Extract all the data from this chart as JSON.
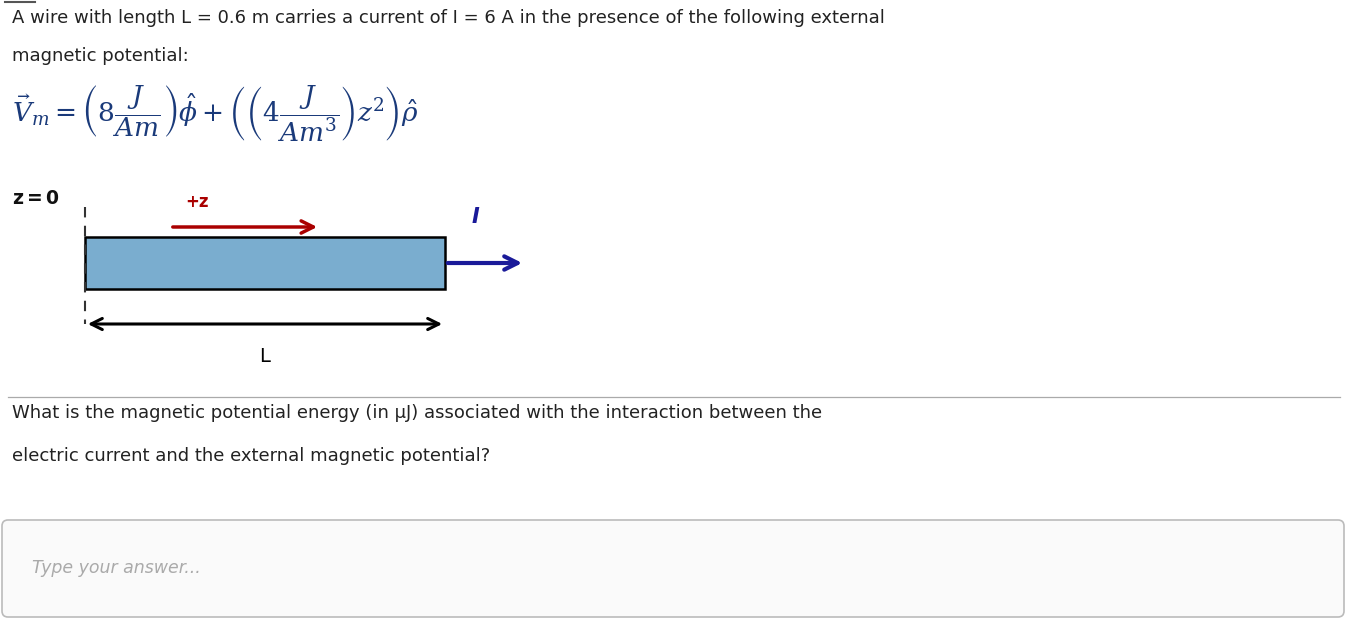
{
  "bg_color": "#ffffff",
  "text_line1": "A wire with length L = 0.6 m carries a current of I = 6 A in the presence of the following external",
  "text_line2": "magnetic potential:",
  "formula": "$\\vec{V}_m = \\left(8\\dfrac{J}{Am}\\right)\\hat{\\phi} + \\left(\\left(4\\dfrac{J}{Am^3}\\right)z^2\\right)\\hat{\\rho}$",
  "z_eq_0": "$\\mathbf{z = 0}$",
  "plus_z_label": "+z",
  "I_label": "I",
  "L_label": "L",
  "wire_color": "#7aadcf",
  "wire_edge_color": "#000000",
  "arrow_z_color": "#aa0000",
  "arrow_I_color": "#1a1a99",
  "arrow_L_color": "#000000",
  "dashed_line_color": "#333333",
  "question_line1": "What is the magnetic potential energy (in μJ) associated with the interaction between the",
  "question_line2": "electric current and the external magnetic potential?",
  "answer_placeholder": "Type your answer...",
  "formula_color": "#1a3a7a",
  "figsize": [
    13.5,
    6.19
  ],
  "dpi": 100
}
